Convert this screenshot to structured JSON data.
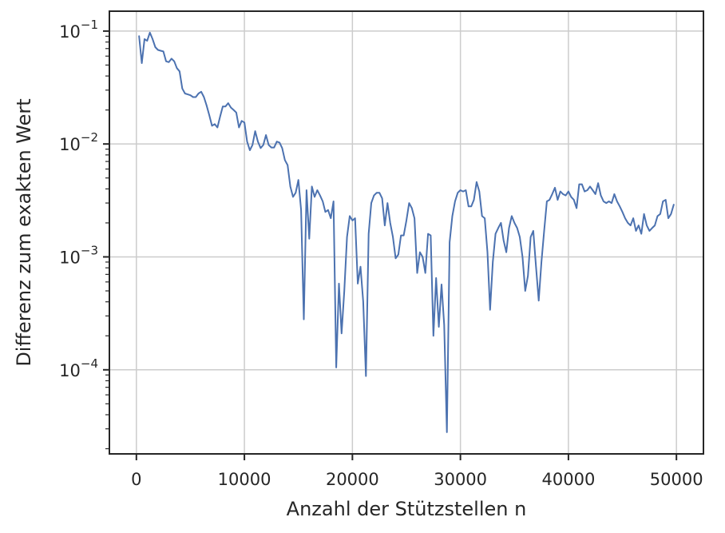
{
  "chart_data": {
    "type": "line",
    "title": "",
    "xlabel": "Anzahl der Stützstellen n",
    "ylabel": "Differenz zum exakten Wert",
    "xlim": [
      -2500,
      52500
    ],
    "ylim": [
      1.8e-05,
      0.15
    ],
    "yscale": "log",
    "grid": true,
    "legend": "none",
    "x_ticks": [
      0,
      10000,
      20000,
      30000,
      40000,
      50000
    ],
    "x_tick_labels": [
      "0",
      "10000",
      "20000",
      "30000",
      "40000",
      "50000"
    ],
    "y_ticks": [
      0.0001,
      0.001,
      0.01,
      0.1
    ],
    "y_tick_bases": [
      "10",
      "10",
      "10",
      "10"
    ],
    "y_tick_exponents": [
      "−4",
      "−3",
      "−2",
      "−1"
    ],
    "series": [
      {
        "color": "#4c72b0",
        "x": [
          250,
          500,
          750,
          1000,
          1250,
          1500,
          1750,
          2000,
          2250,
          2500,
          2750,
          3000,
          3250,
          3500,
          3750,
          4000,
          4250,
          4500,
          4750,
          5000,
          5250,
          5500,
          5750,
          6000,
          6250,
          6500,
          6750,
          7000,
          7250,
          7500,
          7750,
          8000,
          8250,
          8500,
          8750,
          9000,
          9250,
          9500,
          9750,
          10000,
          10250,
          10500,
          10750,
          11000,
          11250,
          11500,
          11750,
          12000,
          12250,
          12500,
          12750,
          13000,
          13250,
          13500,
          13750,
          14000,
          14250,
          14500,
          14750,
          15000,
          15250,
          15500,
          15750,
          16000,
          16250,
          16500,
          16750,
          17000,
          17250,
          17500,
          17750,
          18000,
          18250,
          18500,
          18750,
          19000,
          19250,
          19500,
          19750,
          20000,
          20250,
          20500,
          20750,
          21000,
          21250,
          21500,
          21750,
          22000,
          22250,
          22500,
          22750,
          23000,
          23250,
          23500,
          23750,
          24000,
          24250,
          24500,
          24750,
          25000,
          25250,
          25500,
          25750,
          26000,
          26250,
          26500,
          26750,
          27000,
          27250,
          27500,
          27750,
          28000,
          28250,
          28500,
          28750,
          29000,
          29250,
          29500,
          29750,
          30000,
          30250,
          30500,
          30750,
          31000,
          31250,
          31500,
          31750,
          32000,
          32250,
          32500,
          32750,
          33000,
          33250,
          33500,
          33750,
          34000,
          34250,
          34500,
          34750,
          35000,
          35250,
          35500,
          35750,
          36000,
          36250,
          36500,
          36750,
          37000,
          37250,
          37500,
          37750,
          38000,
          38250,
          38500,
          38750,
          39000,
          39250,
          39500,
          39750,
          40000,
          40250,
          40500,
          40750,
          41000,
          41250,
          41500,
          41750,
          42000,
          42250,
          42500,
          42750,
          43000,
          43250,
          43500,
          43750,
          44000,
          44250,
          44500,
          44750,
          45000,
          45250,
          45500,
          45750,
          46000,
          46250,
          46500,
          46750,
          47000,
          47250,
          47500,
          47750,
          48000,
          48250,
          48500,
          48750,
          49000,
          49250,
          49500,
          49750
        ],
        "y": [
          0.09,
          0.052,
          0.085,
          0.082,
          0.097,
          0.085,
          0.072,
          0.068,
          0.067,
          0.066,
          0.054,
          0.053,
          0.057,
          0.054,
          0.047,
          0.044,
          0.031,
          0.028,
          0.0275,
          0.027,
          0.026,
          0.026,
          0.028,
          0.029,
          0.026,
          0.022,
          0.018,
          0.0145,
          0.015,
          0.014,
          0.0175,
          0.0215,
          0.0215,
          0.023,
          0.021,
          0.02,
          0.019,
          0.014,
          0.016,
          0.0155,
          0.0105,
          0.0088,
          0.0098,
          0.013,
          0.0105,
          0.0092,
          0.0098,
          0.012,
          0.0098,
          0.0093,
          0.0093,
          0.0105,
          0.0103,
          0.0092,
          0.0072,
          0.0065,
          0.0042,
          0.0034,
          0.0037,
          0.0048,
          0.0026,
          0.00028,
          0.0039,
          0.00145,
          0.0042,
          0.0034,
          0.0039,
          0.0035,
          0.0031,
          0.0025,
          0.0026,
          0.0022,
          0.0031,
          0.000105,
          0.00058,
          0.00021,
          0.0005,
          0.0015,
          0.0023,
          0.0021,
          0.0022,
          0.00058,
          0.00082,
          0.0004,
          8.8e-05,
          0.0016,
          0.003,
          0.0035,
          0.0037,
          0.0037,
          0.0033,
          0.0019,
          0.003,
          0.002,
          0.0015,
          0.00097,
          0.00105,
          0.00155,
          0.00155,
          0.0021,
          0.003,
          0.0027,
          0.0022,
          0.00072,
          0.0011,
          0.001,
          0.00072,
          0.0016,
          0.00155,
          0.0002,
          0.00065,
          0.00024,
          0.00057,
          0.00025,
          2.8e-05,
          0.00135,
          0.0023,
          0.0031,
          0.0037,
          0.0039,
          0.0038,
          0.0039,
          0.0028,
          0.0028,
          0.0032,
          0.0046,
          0.0038,
          0.0023,
          0.0022,
          0.0011,
          0.00034,
          0.0009,
          0.0016,
          0.0018,
          0.002,
          0.0014,
          0.0011,
          0.0018,
          0.0023,
          0.002,
          0.0018,
          0.0015,
          0.001,
          0.0005,
          0.00068,
          0.0015,
          0.0017,
          0.00082,
          0.00041,
          0.0009,
          0.0017,
          0.0031,
          0.0032,
          0.0036,
          0.0041,
          0.0032,
          0.0038,
          0.0036,
          0.0035,
          0.0038,
          0.0034,
          0.0032,
          0.0027,
          0.0044,
          0.0044,
          0.0038,
          0.0039,
          0.0042,
          0.0039,
          0.0036,
          0.0045,
          0.0035,
          0.0031,
          0.003,
          0.0031,
          0.003,
          0.0036,
          0.0031,
          0.0028,
          0.0025,
          0.0022,
          0.002,
          0.0019,
          0.0022,
          0.0017,
          0.0019,
          0.0016,
          0.0024,
          0.0019,
          0.0017,
          0.0018,
          0.0019,
          0.0023,
          0.0024,
          0.0031,
          0.0032,
          0.0022,
          0.0024,
          0.0029
        ]
      }
    ]
  }
}
